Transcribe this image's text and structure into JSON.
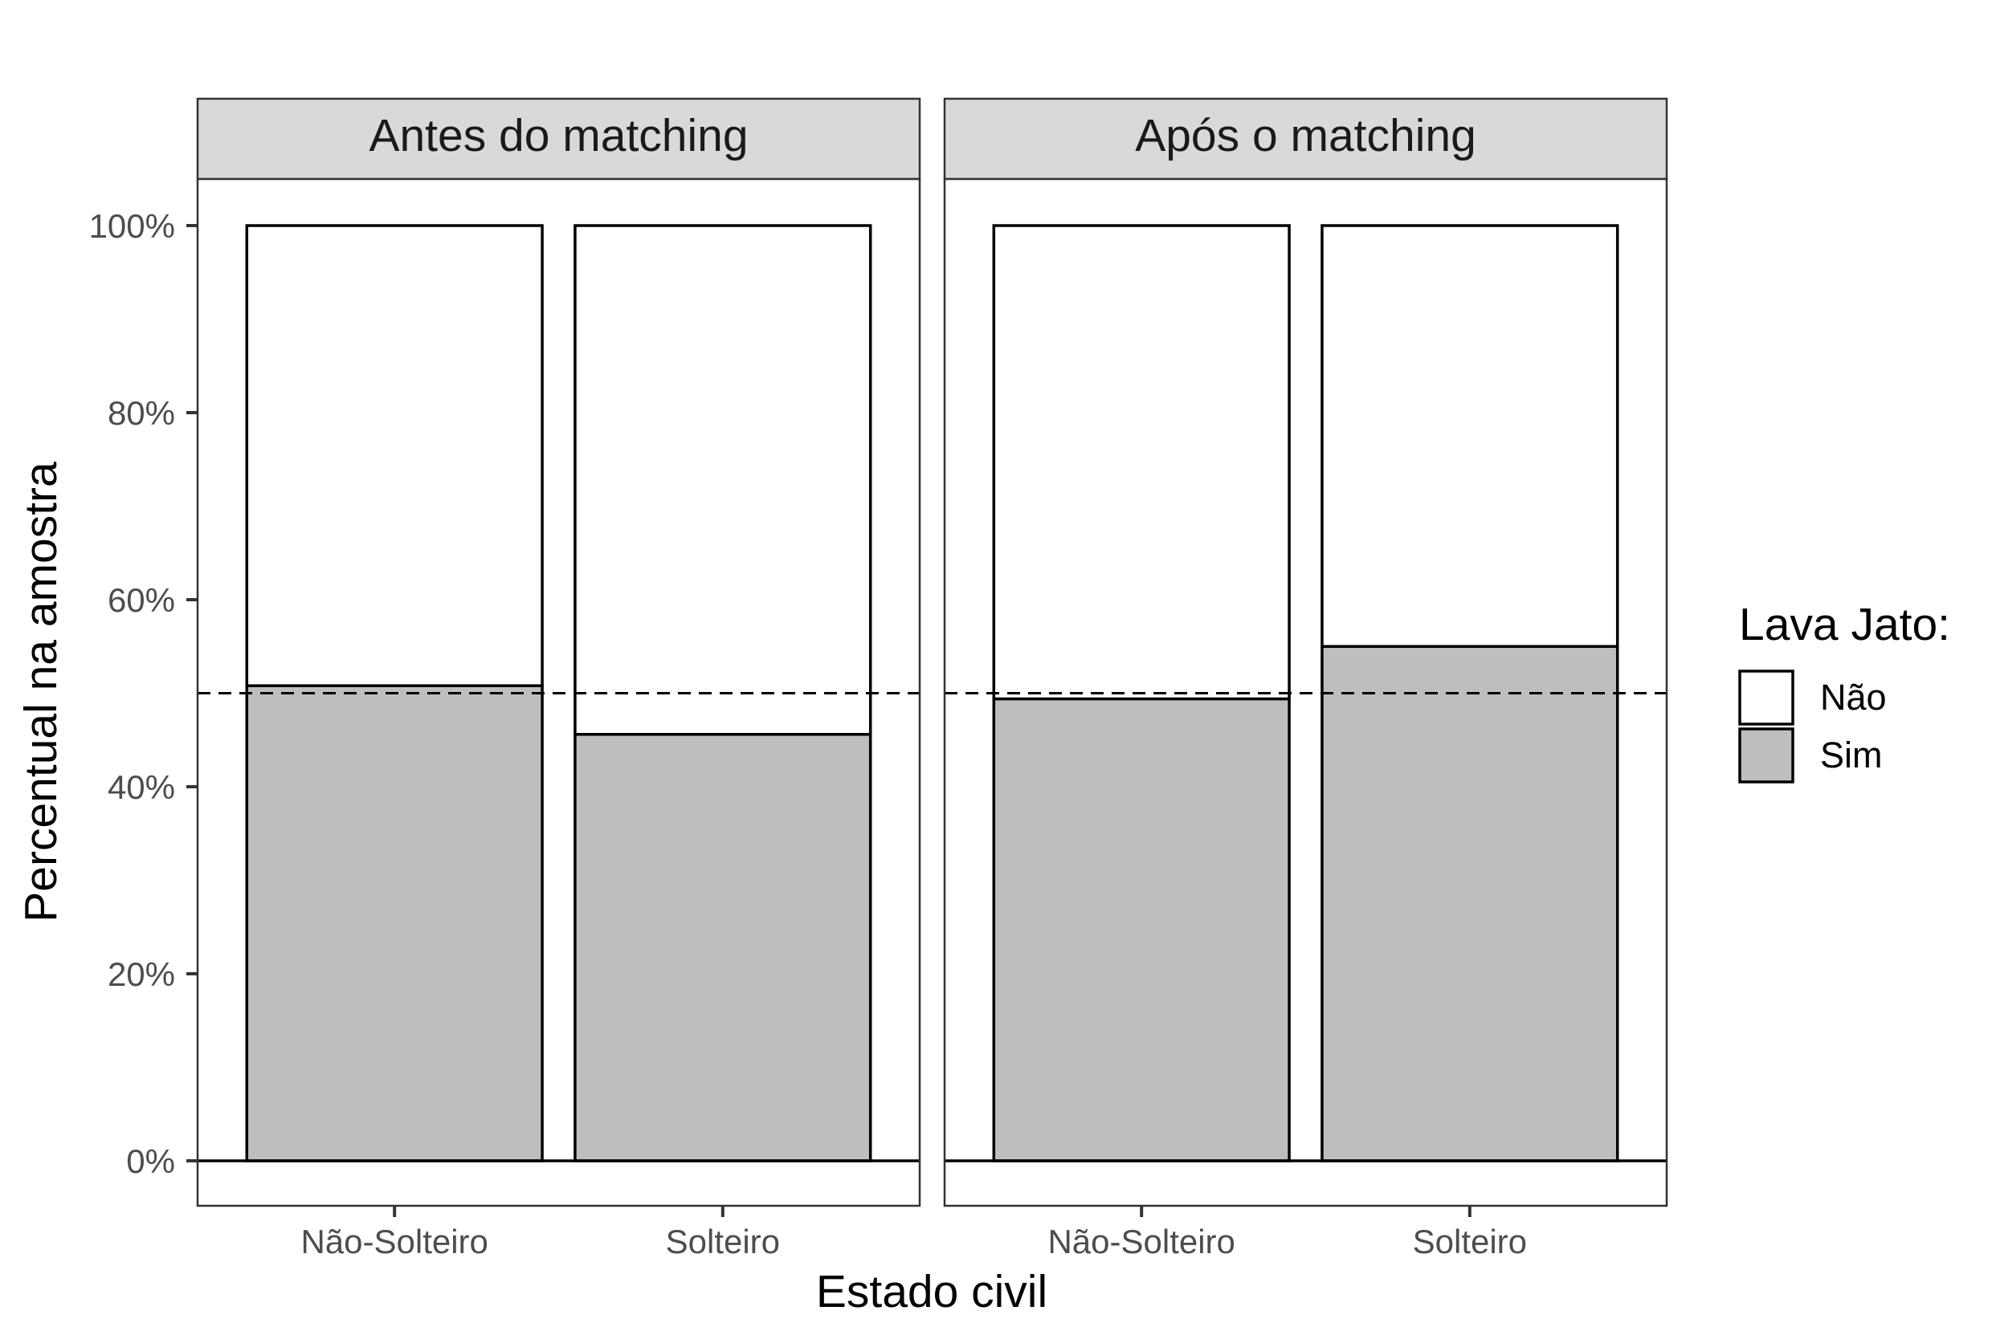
{
  "chart_data": {
    "type": "bar",
    "stacked": true,
    "facets": [
      {
        "title": "Antes do matching",
        "categories": [
          "Não-Solteiro",
          "Solteiro"
        ],
        "series": [
          {
            "name": "Sim",
            "values": [
              50.8,
              45.6
            ]
          },
          {
            "name": "Não",
            "values": [
              49.2,
              54.4
            ]
          }
        ]
      },
      {
        "title": "Após o matching",
        "categories": [
          "Não-Solteiro",
          "Solteiro"
        ],
        "series": [
          {
            "name": "Sim",
            "values": [
              49.4,
              55.0
            ]
          },
          {
            "name": "Não",
            "values": [
              50.6,
              45.0
            ]
          }
        ]
      }
    ],
    "reference_line": 50,
    "xlabel": "Estado civil",
    "ylabel": "Percentual na amostra",
    "ylim": [
      -5,
      105
    ],
    "yticks": [
      0,
      20,
      40,
      60,
      80,
      100
    ],
    "ytick_labels": [
      "0%",
      "20%",
      "40%",
      "60%",
      "80%",
      "100%"
    ],
    "legend": {
      "title": "Lava Jato:",
      "placement": "right",
      "entries": [
        {
          "label": "Não",
          "color": "#ffffff"
        },
        {
          "label": "Sim",
          "color": "#bebebe"
        }
      ]
    },
    "colors": {
      "Sim": "#bebebe",
      "Não": "#ffffff",
      "strip": "#d9d9d9",
      "panel_border": "#333333"
    },
    "grid": false
  }
}
